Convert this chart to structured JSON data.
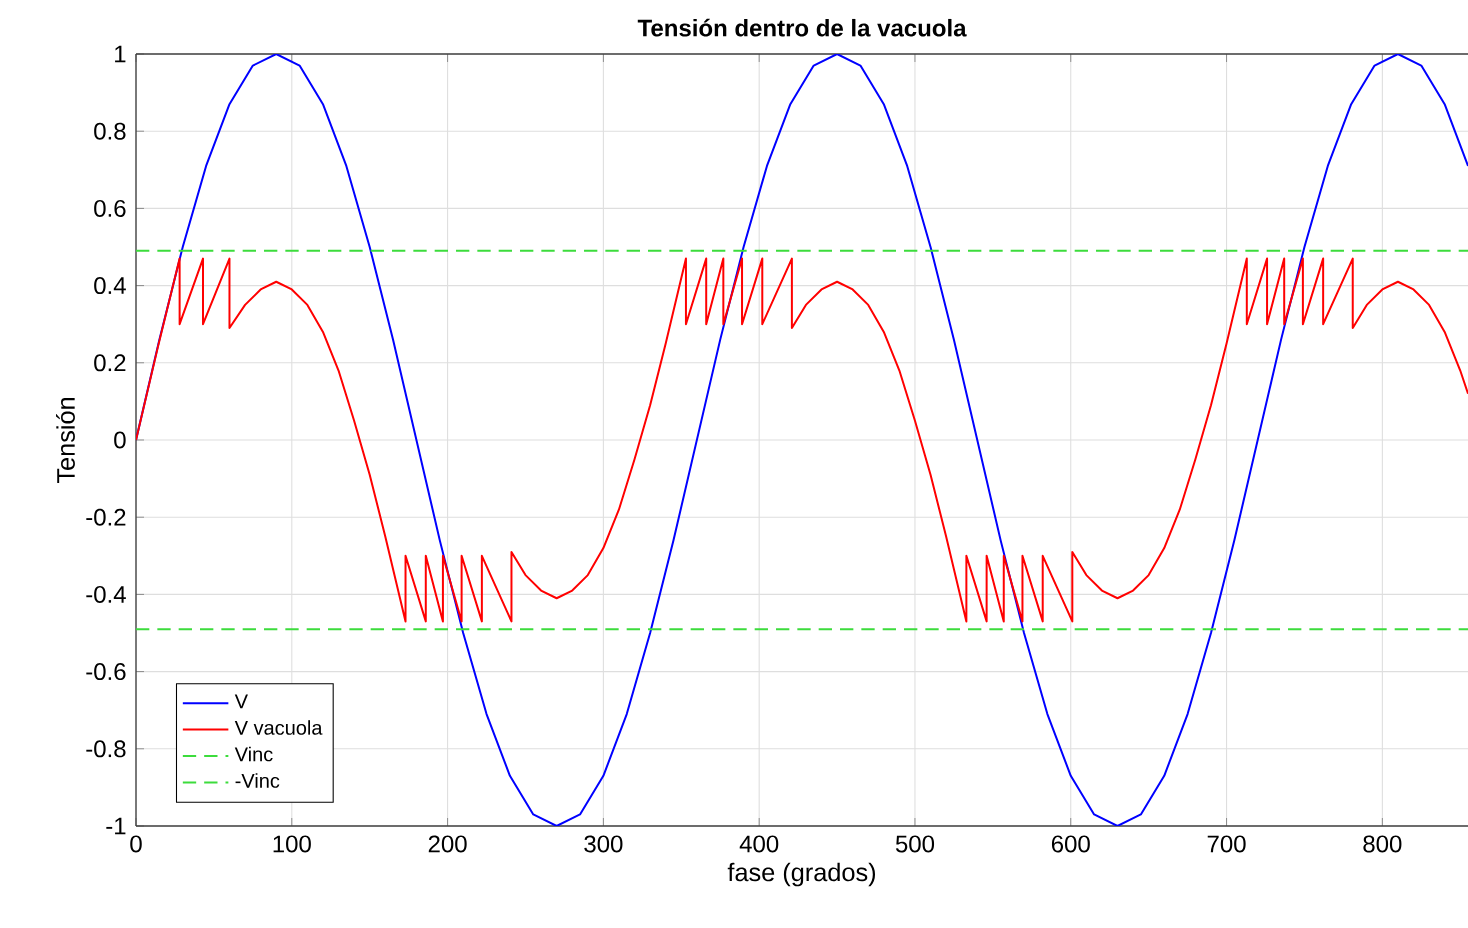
{
  "chart_data": {
    "type": "line",
    "title": "Tensión dentro de la vacuola",
    "xlabel": "fase (grados)",
    "ylabel": "Tensión",
    "xlim": [
      0,
      855
    ],
    "ylim": [
      -1,
      1
    ],
    "xticks": [
      0,
      100,
      200,
      300,
      400,
      500,
      600,
      700,
      800
    ],
    "yticks": [
      -1,
      -0.8,
      -0.6,
      -0.4,
      -0.2,
      0,
      0.2,
      0.4,
      0.6,
      0.8,
      1
    ],
    "grid": true,
    "legend": "bottom left",
    "series": [
      {
        "name": "V",
        "color": "#0000ff",
        "x": [
          0,
          15,
          30,
          45,
          60,
          75,
          90,
          105,
          120,
          135,
          150,
          165,
          180,
          195,
          210,
          225,
          240,
          255,
          270,
          285,
          300,
          315,
          330,
          345,
          360,
          375,
          390,
          405,
          420,
          435,
          450,
          465,
          480,
          495,
          510,
          525,
          540,
          555,
          570,
          585,
          600,
          615,
          630,
          645,
          660,
          675,
          690,
          705,
          720,
          735,
          750,
          765,
          780,
          795,
          810,
          825,
          840,
          855
        ],
        "values": [
          0,
          0.26,
          0.5,
          0.71,
          0.87,
          0.97,
          1,
          0.97,
          0.87,
          0.71,
          0.5,
          0.26,
          0,
          -0.26,
          -0.5,
          -0.71,
          -0.87,
          -0.97,
          -1,
          -0.97,
          -0.87,
          -0.71,
          -0.5,
          -0.26,
          0,
          0.26,
          0.5,
          0.71,
          0.87,
          0.97,
          1,
          0.97,
          0.87,
          0.71,
          0.5,
          0.26,
          0,
          -0.26,
          -0.5,
          -0.71,
          -0.87,
          -0.97,
          -1,
          -0.97,
          -0.87,
          -0.71,
          -0.5,
          -0.26,
          0,
          0.26,
          0.5,
          0.71,
          0.87,
          0.97,
          1,
          0.97,
          0.87,
          0.71
        ]
      },
      {
        "name": "V vacuola",
        "color": "#ff0000",
        "x": [
          0,
          14,
          28,
          28,
          43,
          43,
          60,
          60,
          70,
          80,
          90,
          100,
          110,
          120,
          130,
          140,
          150,
          160,
          173,
          173,
          186,
          186,
          197,
          197,
          209,
          209,
          222,
          222,
          241,
          241,
          250,
          260,
          270,
          280,
          290,
          300,
          310,
          320,
          330,
          340,
          353,
          353,
          366,
          366,
          377,
          377,
          389,
          389,
          402,
          402,
          421,
          421,
          430,
          440,
          450,
          460,
          470,
          480,
          490,
          500,
          510,
          520,
          533,
          533,
          546,
          546,
          557,
          557,
          569,
          569,
          582,
          582,
          601,
          601,
          610,
          620,
          630,
          640,
          650,
          660,
          670,
          680,
          690,
          700,
          713,
          713,
          726,
          726,
          737,
          737,
          749,
          749,
          762,
          762,
          781,
          781,
          790,
          800,
          810,
          820,
          830,
          840,
          850,
          855
        ],
        "values": [
          0,
          0.24,
          0.47,
          0.3,
          0.47,
          0.3,
          0.47,
          0.29,
          0.35,
          0.39,
          0.41,
          0.39,
          0.35,
          0.28,
          0.18,
          0.05,
          -0.09,
          -0.25,
          -0.47,
          -0.3,
          -0.47,
          -0.3,
          -0.47,
          -0.3,
          -0.47,
          -0.3,
          -0.47,
          -0.3,
          -0.47,
          -0.29,
          -0.35,
          -0.39,
          -0.41,
          -0.39,
          -0.35,
          -0.28,
          -0.18,
          -0.05,
          0.09,
          0.25,
          0.47,
          0.3,
          0.47,
          0.3,
          0.47,
          0.3,
          0.47,
          0.3,
          0.47,
          0.3,
          0.47,
          0.29,
          0.35,
          0.39,
          0.41,
          0.39,
          0.35,
          0.28,
          0.18,
          0.05,
          -0.09,
          -0.25,
          -0.47,
          -0.3,
          -0.47,
          -0.3,
          -0.47,
          -0.3,
          -0.47,
          -0.3,
          -0.47,
          -0.3,
          -0.47,
          -0.29,
          -0.35,
          -0.39,
          -0.41,
          -0.39,
          -0.35,
          -0.28,
          -0.18,
          -0.05,
          0.09,
          0.25,
          0.47,
          0.3,
          0.47,
          0.3,
          0.47,
          0.3,
          0.47,
          0.3,
          0.47,
          0.3,
          0.47,
          0.29,
          0.35,
          0.39,
          0.41,
          0.39,
          0.35,
          0.28,
          0.18,
          0.12
        ]
      },
      {
        "name": "Vinc",
        "color": "#3cdc3c",
        "line_style": "dashed",
        "x": [
          0,
          855
        ],
        "values": [
          0.49,
          0.49
        ]
      },
      {
        "name": "-Vinc",
        "color": "#3cdc3c",
        "line_style": "dashed",
        "x": [
          0,
          855
        ],
        "values": [
          -0.49,
          -0.49
        ]
      }
    ]
  }
}
